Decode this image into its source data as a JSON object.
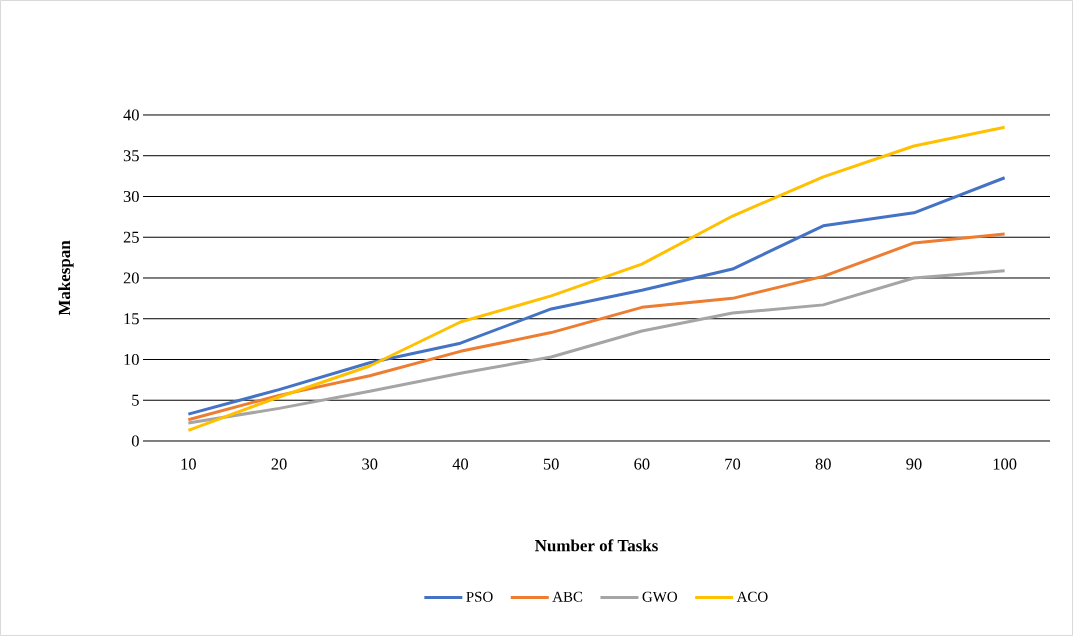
{
  "chart_data": {
    "type": "line",
    "xlabel": "Number of Tasks",
    "ylabel": "Makespan",
    "categories": [
      "10",
      "20",
      "30",
      "40",
      "50",
      "60",
      "70",
      "80",
      "90",
      "100"
    ],
    "series": [
      {
        "name": "PSO",
        "color": "#4472c4",
        "values": [
          3.3,
          6.3,
          9.6,
          12,
          16.2,
          18.5,
          21.1,
          26.4,
          28,
          32.3
        ]
      },
      {
        "name": "ABC",
        "color": "#ed7d31",
        "values": [
          2.6,
          5.6,
          8,
          11,
          13.3,
          16.4,
          17.5,
          20.2,
          24.3,
          25.4
        ]
      },
      {
        "name": "GWO",
        "color": "#a5a5a5",
        "values": [
          2.2,
          4,
          6.1,
          8.3,
          10.3,
          13.5,
          15.7,
          16.7,
          20,
          20.9
        ]
      },
      {
        "name": "ACO",
        "color": "#ffc000",
        "values": [
          1.3,
          5.4,
          9.2,
          14.6,
          17.8,
          21.7,
          27.6,
          32.4,
          36.2,
          38.5
        ]
      }
    ],
    "ylim": [
      0,
      40
    ],
    "yticks": [
      0,
      5,
      10,
      15,
      20,
      25,
      30,
      35,
      40
    ],
    "grid": "y",
    "legend": "bottom"
  }
}
